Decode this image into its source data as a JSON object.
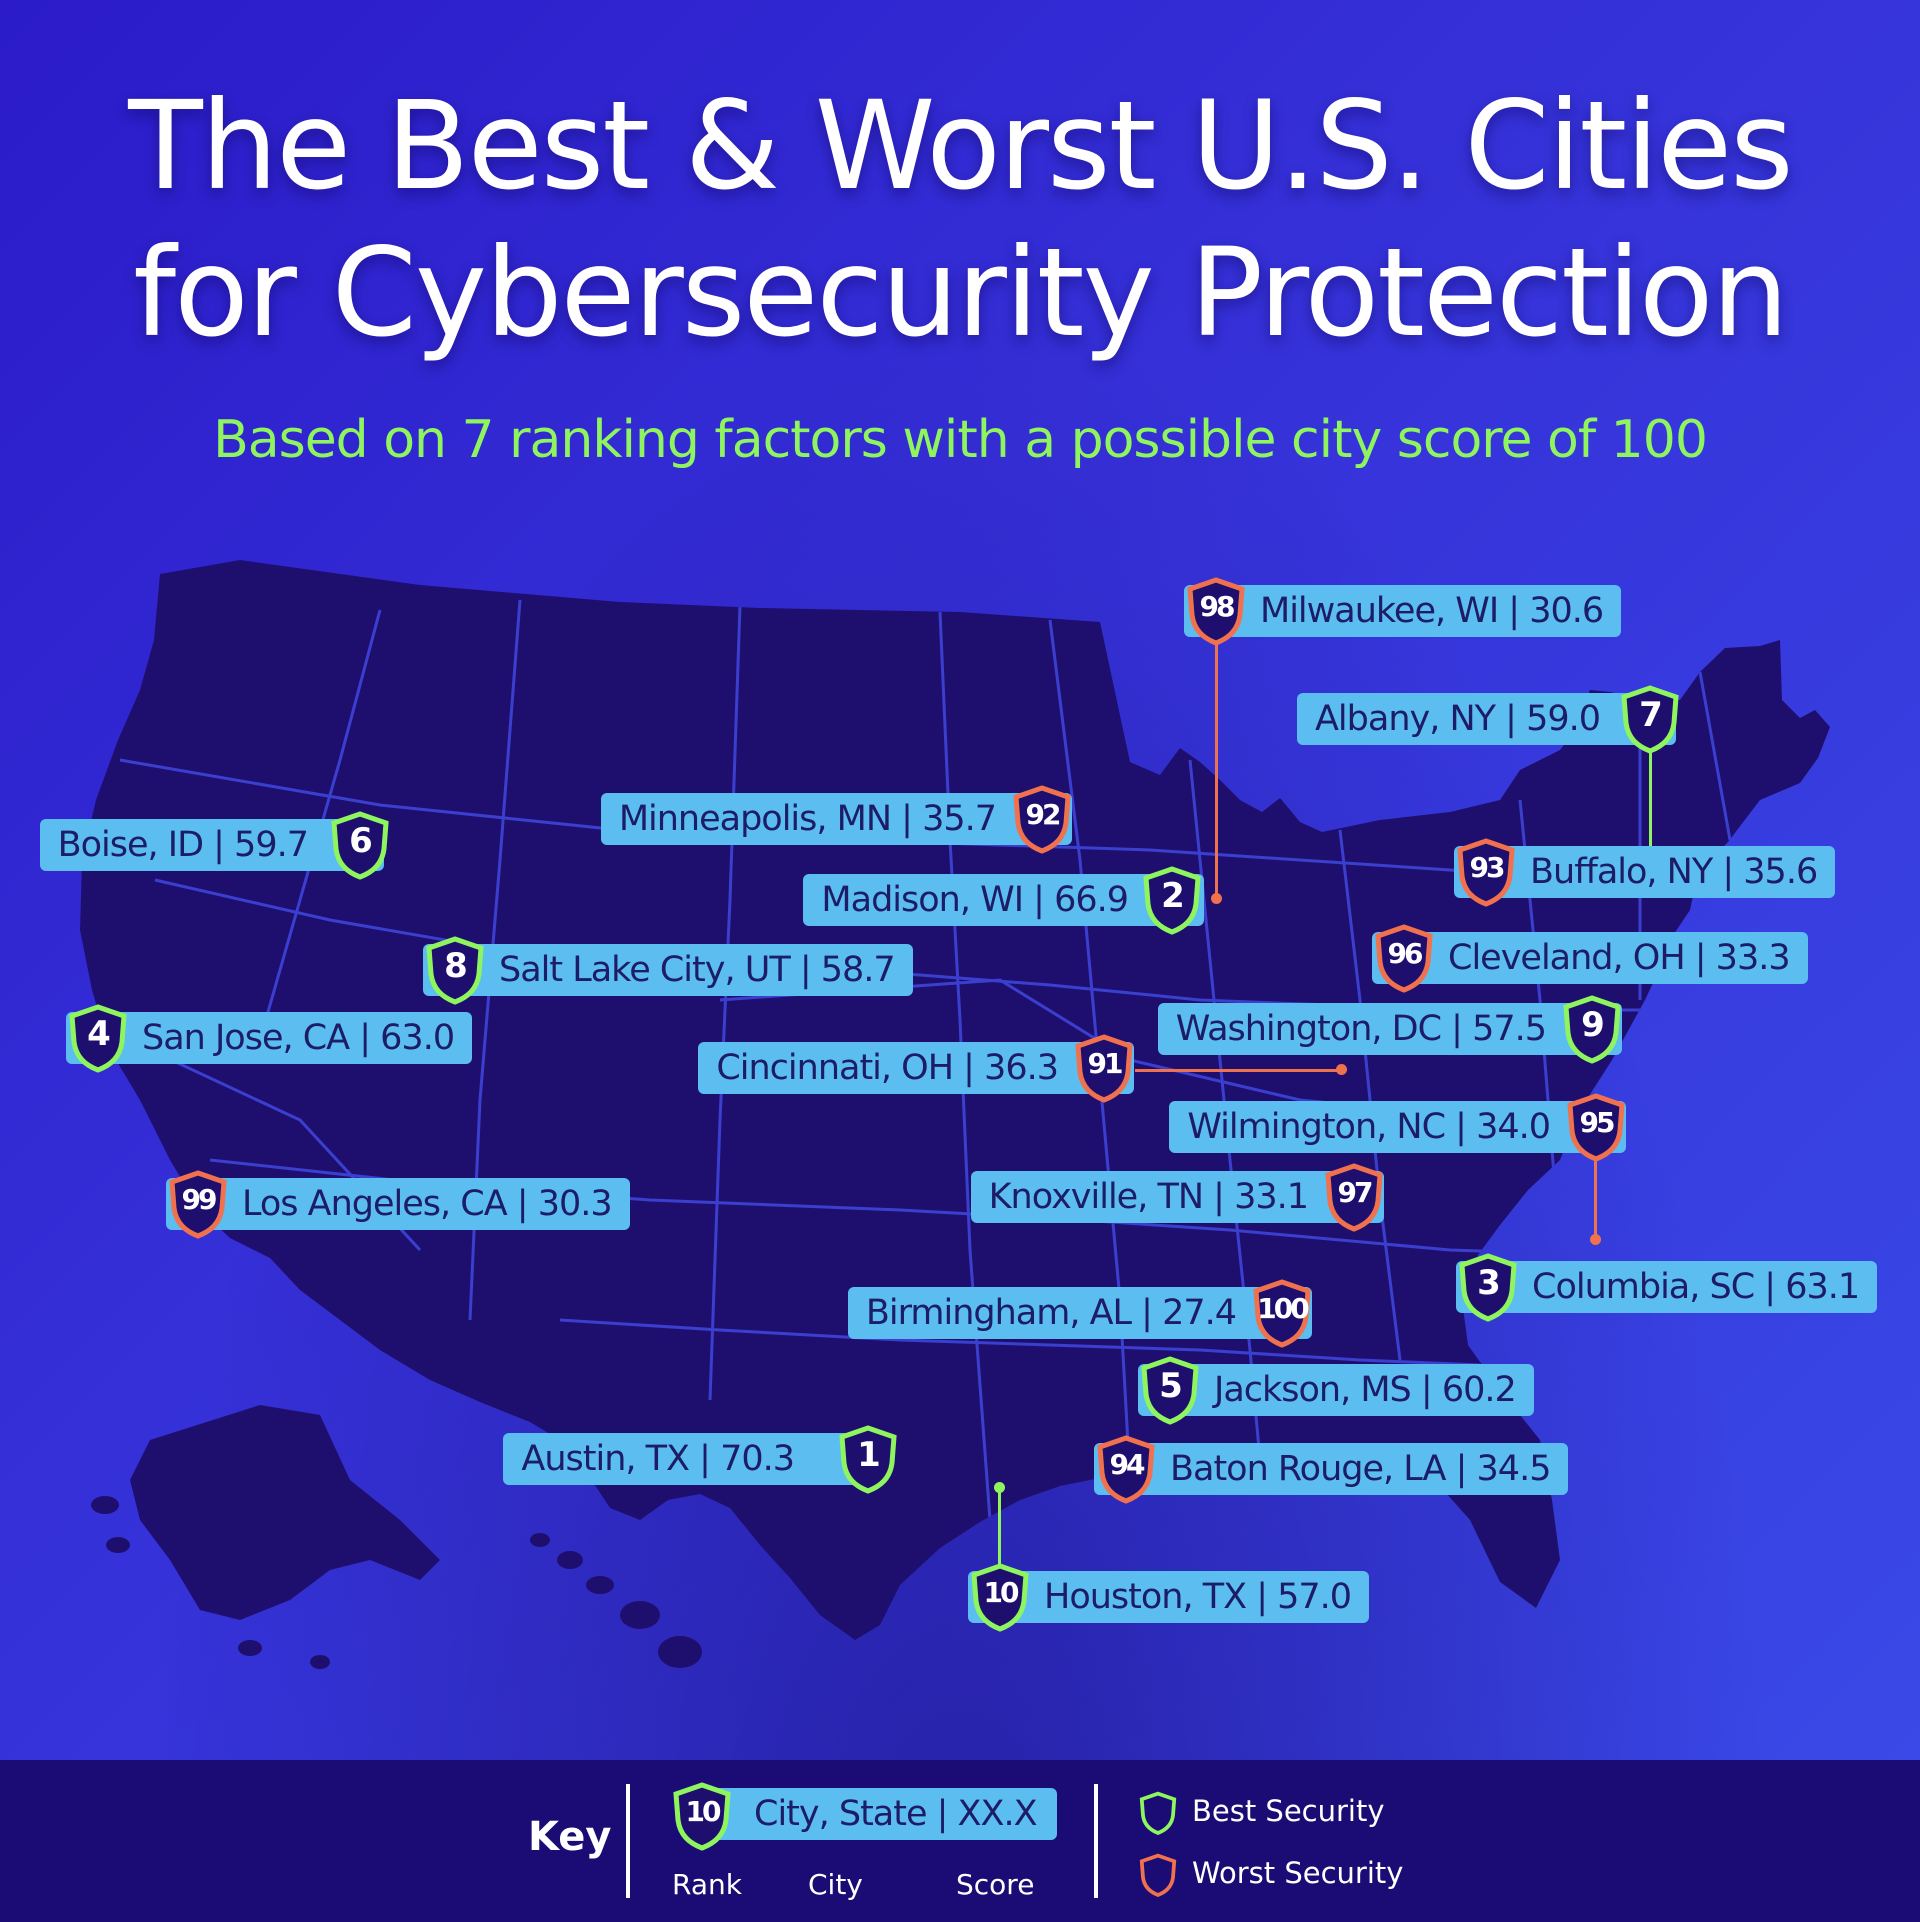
{
  "title_line1": "The Best & Worst U.S. Cities",
  "title_line2": "for Cybersecurity Protection",
  "subtitle": "Based on 7 ranking factors with a possible city score of 100",
  "colors": {
    "best": "#8ef55e",
    "worst": "#f0714d",
    "label_bg": "#5cbdf1",
    "label_text": "#1c1d66",
    "map_fill": "#1e0f6e",
    "map_stroke": "#3b3fd0",
    "key_bg": "#1a0c74"
  },
  "cities": [
    {
      "rank": "1",
      "label": "Austin, TX | 70.3",
      "type": "best"
    },
    {
      "rank": "2",
      "label": "Madison, WI | 66.9",
      "type": "best"
    },
    {
      "rank": "3",
      "label": "Columbia, SC | 63.1",
      "type": "best"
    },
    {
      "rank": "4",
      "label": "San Jose, CA | 63.0",
      "type": "best"
    },
    {
      "rank": "5",
      "label": "Jackson, MS | 60.2",
      "type": "best"
    },
    {
      "rank": "6",
      "label": "Boise, ID | 59.7",
      "type": "best"
    },
    {
      "rank": "7",
      "label": "Albany, NY | 59.0",
      "type": "best"
    },
    {
      "rank": "8",
      "label": "Salt Lake City, UT | 58.7",
      "type": "best"
    },
    {
      "rank": "9",
      "label": "Washington, DC | 57.5",
      "type": "best"
    },
    {
      "rank": "10",
      "label": "Houston, TX | 57.0",
      "type": "best"
    },
    {
      "rank": "91",
      "label": "Cincinnati, OH | 36.3",
      "type": "worst"
    },
    {
      "rank": "92",
      "label": "Minneapolis, MN | 35.7",
      "type": "worst"
    },
    {
      "rank": "93",
      "label": "Buffalo, NY | 35.6",
      "type": "worst"
    },
    {
      "rank": "94",
      "label": "Baton Rouge, LA | 34.5",
      "type": "worst"
    },
    {
      "rank": "95",
      "label": "Wilmington, NC | 34.0",
      "type": "worst"
    },
    {
      "rank": "96",
      "label": "Cleveland, OH | 33.3",
      "type": "worst"
    },
    {
      "rank": "97",
      "label": "Knoxville, TN | 33.1",
      "type": "worst"
    },
    {
      "rank": "98",
      "label": "Milwaukee, WI | 30.6",
      "type": "worst"
    },
    {
      "rank": "99",
      "label": "Los Angeles, CA | 30.3",
      "type": "worst"
    },
    {
      "rank": "100",
      "label": "Birmingham, AL | 27.4",
      "type": "worst"
    }
  ],
  "key": {
    "title": "Key",
    "example_rank": "10",
    "example_label": "City, State | XX.X",
    "rank_caption": "Rank",
    "city_caption": "City",
    "score_caption": "Score",
    "best_label": "Best Security",
    "worst_label": "Worst Security"
  }
}
